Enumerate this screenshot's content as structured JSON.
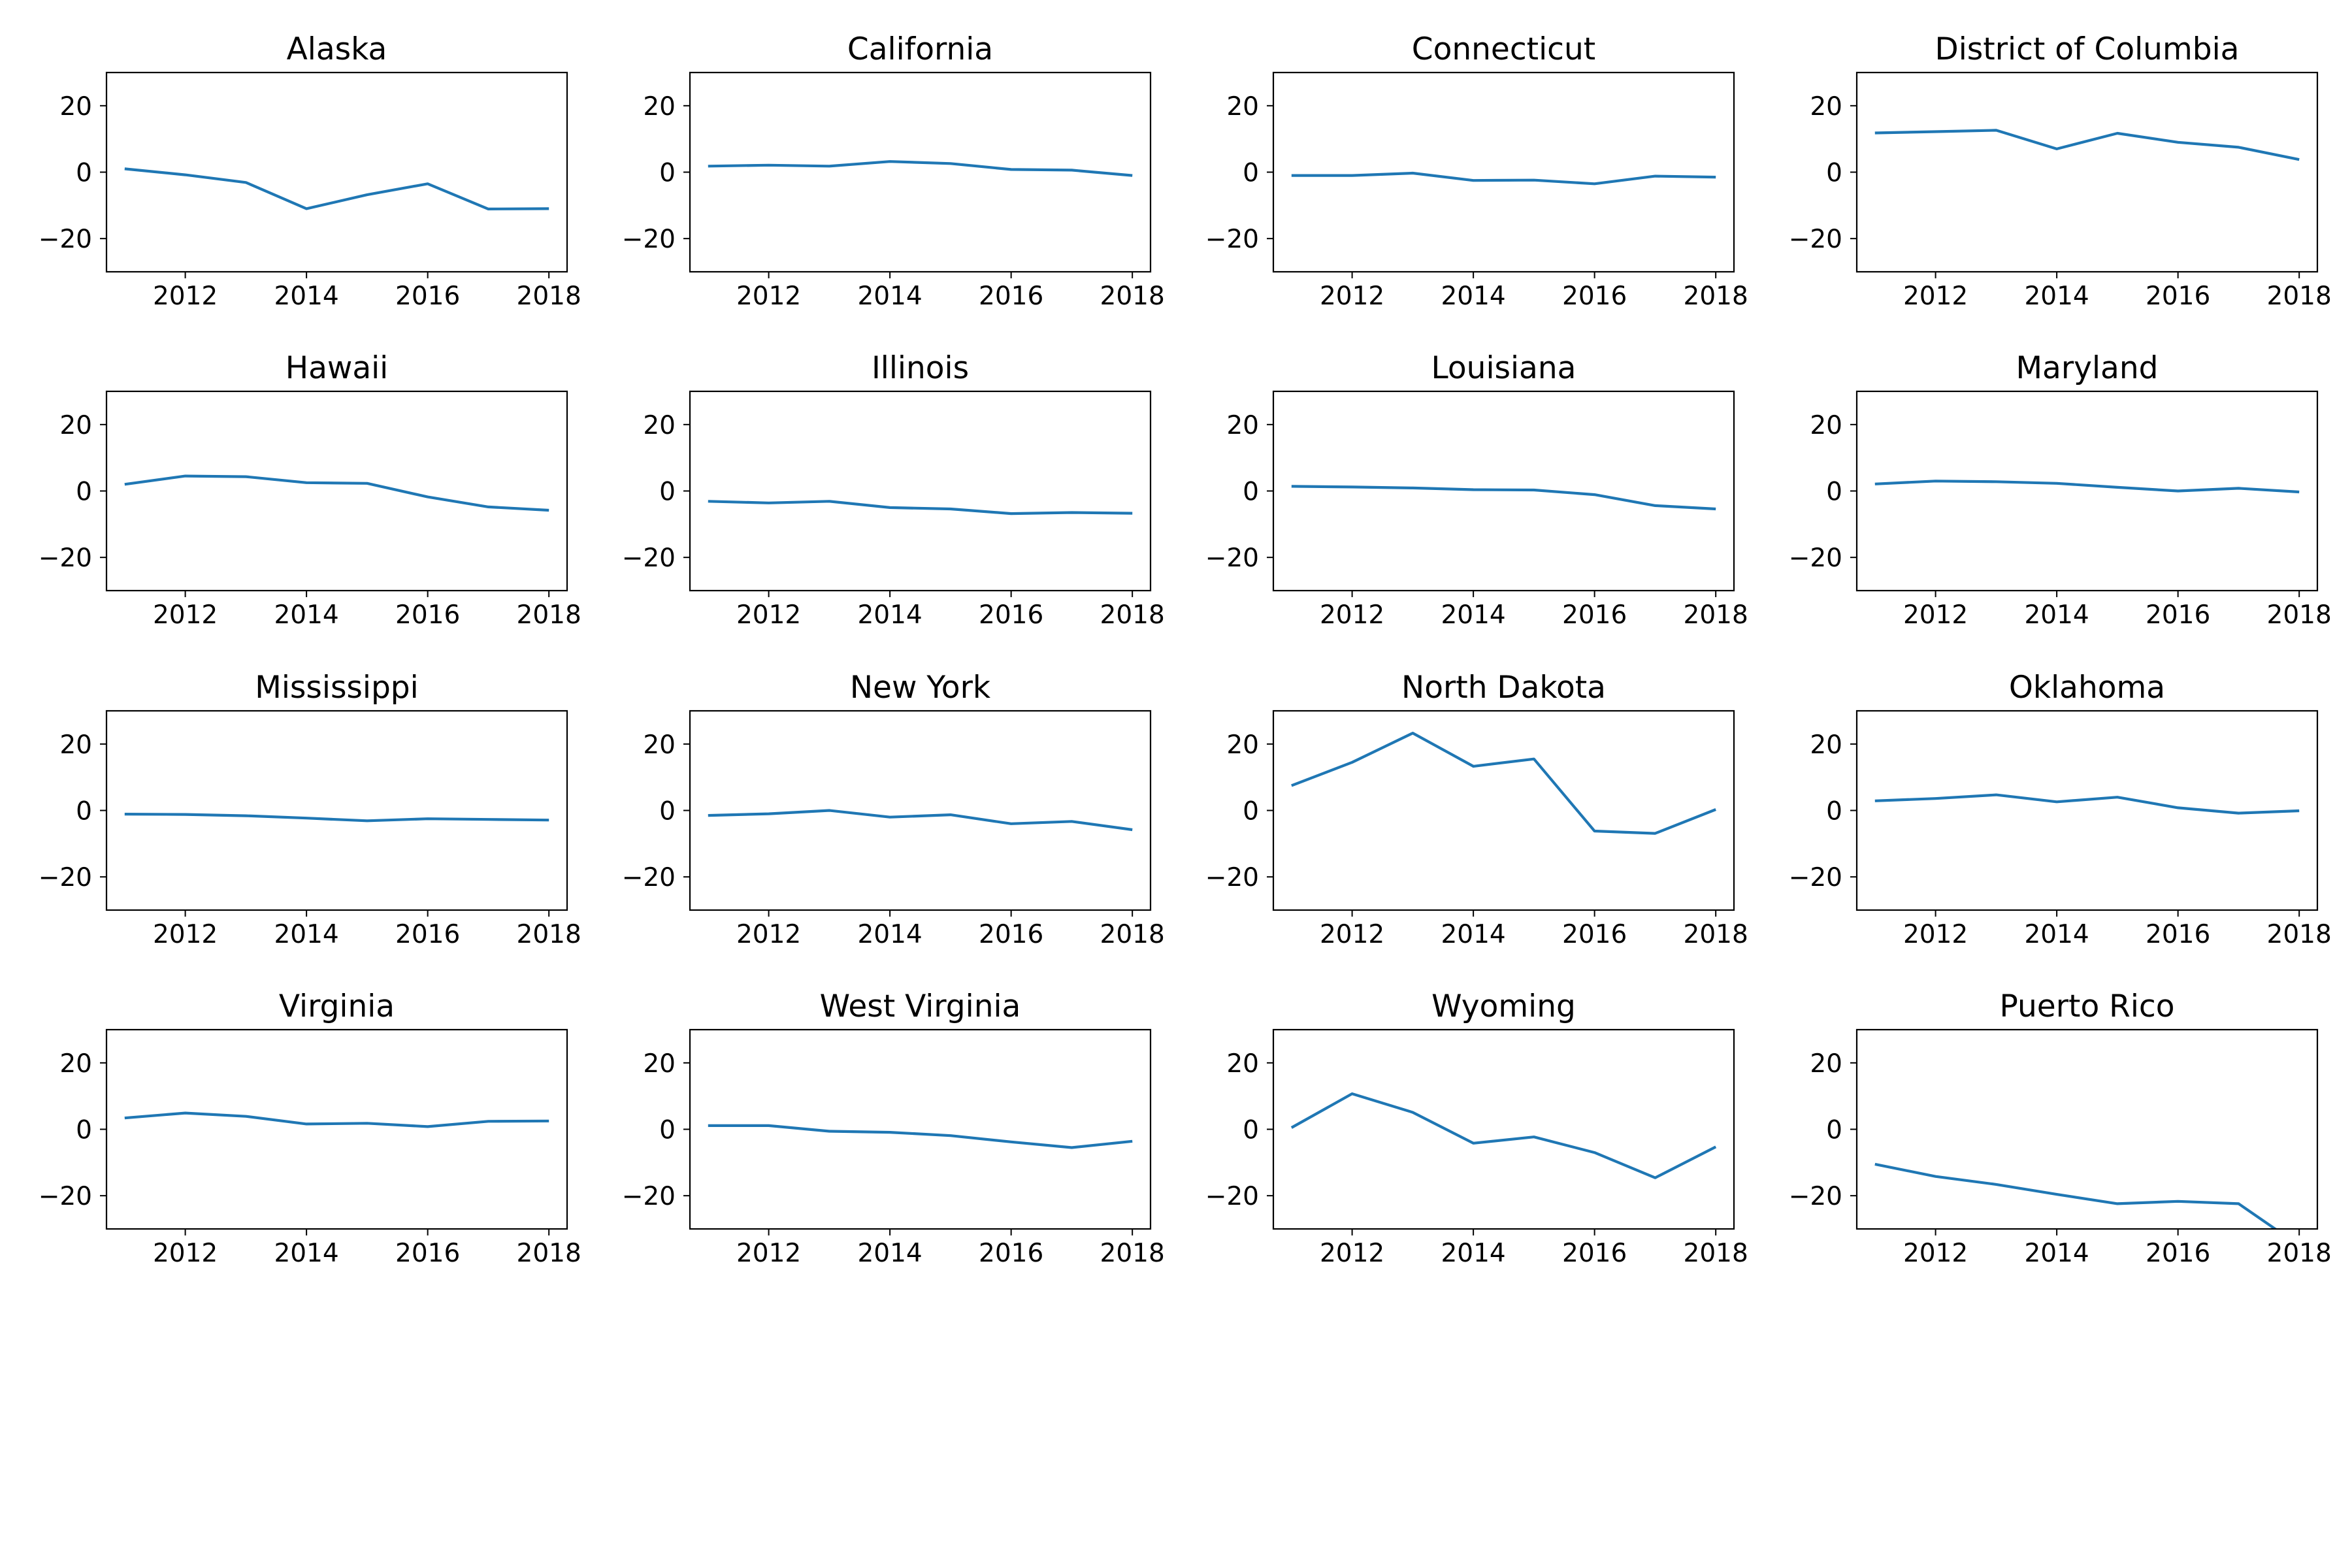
{
  "chart_data": [
    {
      "type": "line",
      "title": "Alaska",
      "x": [
        2011,
        2012,
        2013,
        2014,
        2015,
        2016,
        2017,
        2018
      ],
      "values": [
        1,
        -0.8,
        -3.1,
        -11,
        -6.8,
        -3.5,
        -11.1,
        -11
      ],
      "ylim": [
        -30,
        30
      ],
      "xticks": [
        2012,
        2014,
        2016,
        2018
      ],
      "yticks": [
        20,
        0,
        -20
      ],
      "grid": false
    },
    {
      "type": "line",
      "title": "California",
      "x": [
        2011,
        2012,
        2013,
        2014,
        2015,
        2016,
        2017,
        2018
      ],
      "values": [
        1.8,
        2.1,
        1.8,
        3.2,
        2.6,
        0.8,
        0.6,
        -1
      ],
      "ylim": [
        -30,
        30
      ],
      "xticks": [
        2012,
        2014,
        2016,
        2018
      ],
      "yticks": [
        20,
        0,
        -20
      ],
      "grid": false
    },
    {
      "type": "line",
      "title": "Connecticut",
      "x": [
        2011,
        2012,
        2013,
        2014,
        2015,
        2016,
        2017,
        2018
      ],
      "values": [
        -1,
        -1,
        -0.3,
        -2.5,
        -2.4,
        -3.5,
        -1.2,
        -1.5
      ],
      "ylim": [
        -30,
        30
      ],
      "xticks": [
        2012,
        2014,
        2016,
        2018
      ],
      "yticks": [
        20,
        0,
        -20
      ],
      "grid": false
    },
    {
      "type": "line",
      "title": "District of Columbia",
      "x": [
        2011,
        2012,
        2013,
        2014,
        2015,
        2016,
        2017,
        2018
      ],
      "values": [
        11.8,
        12.2,
        12.6,
        7,
        11.7,
        9,
        7.5,
        3.8
      ],
      "ylim": [
        -30,
        30
      ],
      "xticks": [
        2012,
        2014,
        2016,
        2018
      ],
      "yticks": [
        20,
        0,
        -20
      ],
      "grid": false
    },
    {
      "type": "line",
      "title": "Hawaii",
      "x": [
        2011,
        2012,
        2013,
        2014,
        2015,
        2016,
        2017,
        2018
      ],
      "values": [
        2,
        4.5,
        4.3,
        2.5,
        2.3,
        -1.8,
        -4.8,
        -5.8
      ],
      "ylim": [
        -30,
        30
      ],
      "xticks": [
        2012,
        2014,
        2016,
        2018
      ],
      "yticks": [
        20,
        0,
        -20
      ],
      "grid": false
    },
    {
      "type": "line",
      "title": "Illinois",
      "x": [
        2011,
        2012,
        2013,
        2014,
        2015,
        2016,
        2017,
        2018
      ],
      "values": [
        -3.1,
        -3.6,
        -3.1,
        -5,
        -5.4,
        -6.8,
        -6.5,
        -6.7
      ],
      "ylim": [
        -30,
        30
      ],
      "xticks": [
        2012,
        2014,
        2016,
        2018
      ],
      "yticks": [
        20,
        0,
        -20
      ],
      "grid": false
    },
    {
      "type": "line",
      "title": "Louisiana",
      "x": [
        2011,
        2012,
        2013,
        2014,
        2015,
        2016,
        2017,
        2018
      ],
      "values": [
        1.4,
        1.2,
        0.9,
        0.4,
        0.3,
        -1.1,
        -4.4,
        -5.4
      ],
      "ylim": [
        -30,
        30
      ],
      "xticks": [
        2012,
        2014,
        2016,
        2018
      ],
      "yticks": [
        20,
        0,
        -20
      ],
      "grid": false
    },
    {
      "type": "line",
      "title": "Maryland",
      "x": [
        2011,
        2012,
        2013,
        2014,
        2015,
        2016,
        2017,
        2018
      ],
      "values": [
        2.1,
        3,
        2.8,
        2.3,
        1.1,
        0,
        0.8,
        -0.3
      ],
      "ylim": [
        -30,
        30
      ],
      "xticks": [
        2012,
        2014,
        2016,
        2018
      ],
      "yticks": [
        20,
        0,
        -20
      ],
      "grid": false
    },
    {
      "type": "line",
      "title": "Mississippi",
      "x": [
        2011,
        2012,
        2013,
        2014,
        2015,
        2016,
        2017,
        2018
      ],
      "values": [
        -1.1,
        -1.2,
        -1.6,
        -2.3,
        -3.1,
        -2.5,
        -2.7,
        -2.9
      ],
      "ylim": [
        -30,
        30
      ],
      "xticks": [
        2012,
        2014,
        2016,
        2018
      ],
      "yticks": [
        20,
        0,
        -20
      ],
      "grid": false
    },
    {
      "type": "line",
      "title": "New York",
      "x": [
        2011,
        2012,
        2013,
        2014,
        2015,
        2016,
        2017,
        2018
      ],
      "values": [
        -1.5,
        -1,
        0,
        -2,
        -1.3,
        -4,
        -3.3,
        -5.8
      ],
      "ylim": [
        -30,
        30
      ],
      "xticks": [
        2012,
        2014,
        2016,
        2018
      ],
      "yticks": [
        20,
        0,
        -20
      ],
      "grid": false
    },
    {
      "type": "line",
      "title": "North Dakota",
      "x": [
        2011,
        2012,
        2013,
        2014,
        2015,
        2016,
        2017,
        2018
      ],
      "values": [
        7.5,
        14.5,
        23.3,
        13.3,
        15.5,
        -6.2,
        -6.9,
        0.3
      ],
      "ylim": [
        -30,
        30
      ],
      "xticks": [
        2012,
        2014,
        2016,
        2018
      ],
      "yticks": [
        20,
        0,
        -20
      ],
      "grid": false
    },
    {
      "type": "line",
      "title": "Oklahoma",
      "x": [
        2011,
        2012,
        2013,
        2014,
        2015,
        2016,
        2017,
        2018
      ],
      "values": [
        2.9,
        3.6,
        4.7,
        2.6,
        4,
        0.8,
        -0.8,
        -0.1
      ],
      "ylim": [
        -30,
        30
      ],
      "xticks": [
        2012,
        2014,
        2016,
        2018
      ],
      "yticks": [
        20,
        0,
        -20
      ],
      "grid": false
    },
    {
      "type": "line",
      "title": "Virginia",
      "x": [
        2011,
        2012,
        2013,
        2014,
        2015,
        2016,
        2017,
        2018
      ],
      "values": [
        3.4,
        4.9,
        3.9,
        1.6,
        1.8,
        0.8,
        2.4,
        2.5
      ],
      "ylim": [
        -30,
        30
      ],
      "xticks": [
        2012,
        2014,
        2016,
        2018
      ],
      "yticks": [
        20,
        0,
        -20
      ],
      "grid": false
    },
    {
      "type": "line",
      "title": "West Virginia",
      "x": [
        2011,
        2012,
        2013,
        2014,
        2015,
        2016,
        2017,
        2018
      ],
      "values": [
        1.1,
        1.1,
        -0.6,
        -0.9,
        -1.9,
        -3.8,
        -5.5,
        -3.6
      ],
      "ylim": [
        -30,
        30
      ],
      "xticks": [
        2012,
        2014,
        2016,
        2018
      ],
      "yticks": [
        20,
        0,
        -20
      ],
      "grid": false
    },
    {
      "type": "line",
      "title": "Wyoming",
      "x": [
        2011,
        2012,
        2013,
        2014,
        2015,
        2016,
        2017,
        2018
      ],
      "values": [
        0.5,
        10.7,
        5.1,
        -4.2,
        -2.3,
        -7,
        -14.6,
        -5.3
      ],
      "ylim": [
        -30,
        30
      ],
      "xticks": [
        2012,
        2014,
        2016,
        2018
      ],
      "yticks": [
        20,
        0,
        -20
      ],
      "grid": false
    },
    {
      "type": "line",
      "title": "Puerto Rico",
      "x": [
        2011,
        2012,
        2013,
        2014,
        2015,
        2016,
        2017,
        2018
      ],
      "values": [
        -10.5,
        -14.2,
        -16.6,
        -19.6,
        -22.4,
        -21.7,
        -22.4,
        -35
      ],
      "ylim": [
        -30,
        30
      ],
      "xticks": [
        2012,
        2014,
        2016,
        2018
      ],
      "yticks": [
        20,
        0,
        -20
      ],
      "grid": false
    }
  ],
  "colors": {
    "line": "#1f77b4",
    "axes": "#000000"
  }
}
